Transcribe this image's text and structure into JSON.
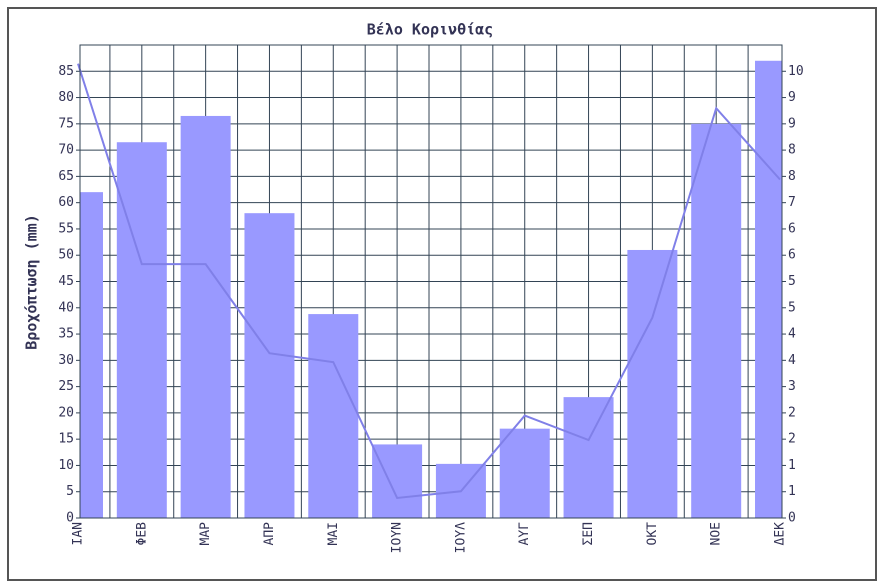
{
  "chart_data": {
    "type": "bar",
    "title": "Βέλο Κορινθίας",
    "y_label": "Βροχόπτωση (mm)",
    "categories": [
      "ΙΑΝ",
      "ΦΕΒ",
      "ΜΑΡ",
      "ΑΠΡ",
      "ΜΑΙ",
      "ΙΟΥΝ",
      "ΙΟΥΛ",
      "ΑΥΓ",
      "ΣΕΠ",
      "ΟΚΤ",
      "ΝΟΕ",
      "ΔΕΚ"
    ],
    "series": [
      {
        "type": "bar",
        "color": "#9999ff",
        "values": [
          62,
          71.5,
          76.5,
          58,
          38.8,
          14,
          10.3,
          17,
          23,
          51,
          75,
          87
        ]
      },
      {
        "type": "line",
        "axis": "y2",
        "color": "#8080e8",
        "values": [
          10.2,
          5.7,
          5.7,
          3.7,
          3.5,
          0.45,
          0.6,
          2.3,
          1.75,
          4.5,
          9.2,
          7.6
        ]
      }
    ],
    "ylim": [
      0,
      90
    ],
    "yticks": [
      0,
      5,
      10,
      15,
      20,
      25,
      30,
      35,
      40,
      45,
      50,
      55,
      60,
      65,
      70,
      75,
      80,
      85
    ],
    "y2lim": [
      0,
      10.62
    ],
    "y2ticks": [
      0,
      {
        "value": 0.59,
        "label": "1"
      },
      {
        "value": 1.18,
        "label": "1"
      },
      {
        "value": 1.77,
        "label": "2"
      },
      {
        "value": 2.36,
        "label": "2"
      },
      {
        "value": 2.95,
        "label": "3"
      },
      {
        "value": 3.54,
        "label": "4"
      },
      {
        "value": 4.13,
        "label": "4"
      },
      {
        "value": 4.72,
        "label": "5"
      },
      {
        "value": 5.31,
        "label": "5"
      },
      {
        "value": 5.9,
        "label": "6"
      },
      {
        "value": 6.49,
        "label": "6"
      },
      {
        "value": 7.08,
        "label": "7"
      },
      {
        "value": 7.67,
        "label": "8"
      },
      {
        "value": 8.26,
        "label": "8"
      },
      {
        "value": 8.85,
        "label": "9"
      },
      {
        "value": 9.44,
        "label": "9"
      },
      {
        "value": 10.03,
        "label": "10"
      }
    ],
    "grid": true
  }
}
